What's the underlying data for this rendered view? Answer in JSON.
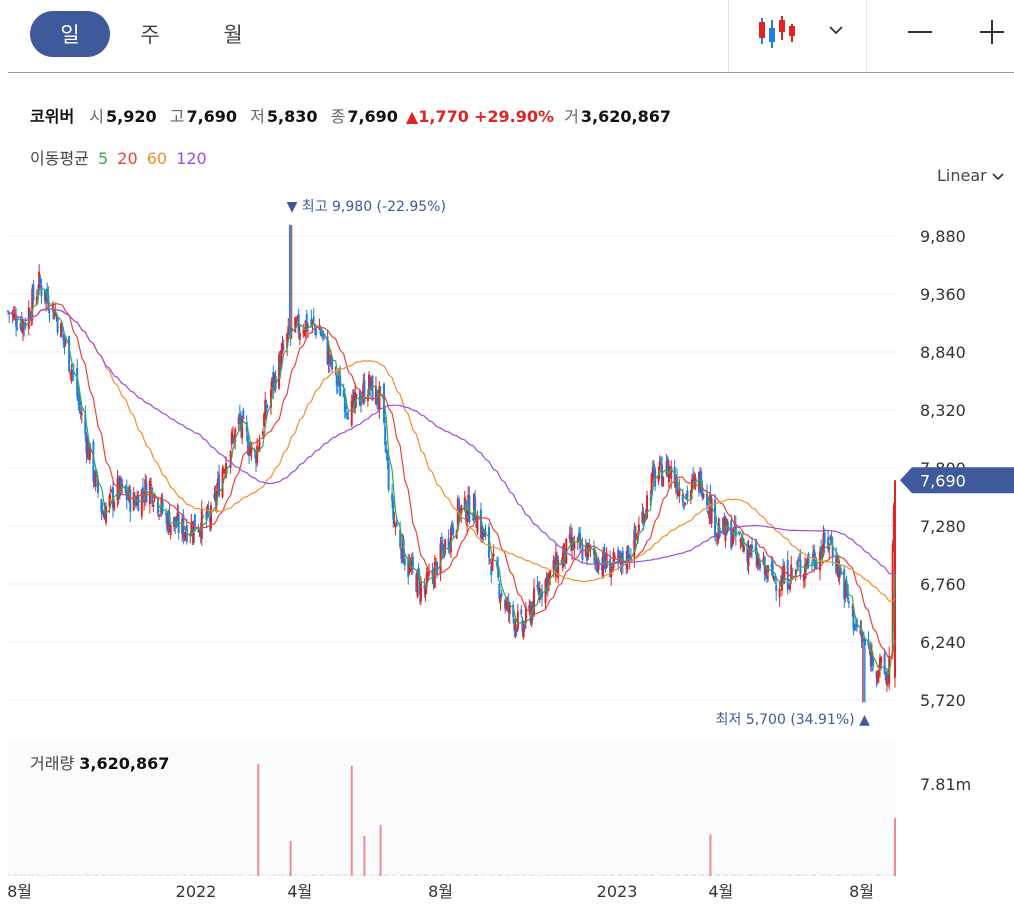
{
  "toolbar": {
    "periods": [
      "일",
      "주",
      "월"
    ],
    "active_period": "일",
    "chart_type_icon": "candlestick-icon",
    "dropdown_icon": "chevron-down-icon",
    "zoom_out_icon": "minus-icon",
    "zoom_in_icon": "plus-icon"
  },
  "quote": {
    "name": "코위버",
    "open_label": "시",
    "open": "5,920",
    "high_label": "고",
    "high": "7,690",
    "low_label": "저",
    "low": "5,830",
    "close_label": "종",
    "close": "7,690",
    "change": "1,770",
    "change_pct": "+29.90%",
    "volume_label": "거",
    "volume": "3,620,867"
  },
  "moving_average": {
    "label": "이동평균",
    "periods": [
      {
        "value": "5",
        "color": "#3aa655"
      },
      {
        "value": "20",
        "color": "#e8423f"
      },
      {
        "value": "60",
        "color": "#f0902a"
      },
      {
        "value": "120",
        "color": "#9a4de0"
      }
    ]
  },
  "scale_mode": "Linear",
  "colors": {
    "up": "#e02424",
    "down": "#1f7fe0",
    "accent": "#3f5a9a"
  },
  "chart_data": {
    "type": "candlestick",
    "y_ticks": [
      "9,880",
      "9,360",
      "8,840",
      "8,320",
      "7,800",
      "7,280",
      "6,760",
      "6,240",
      "5,720"
    ],
    "y_tick_values": [
      9880,
      9360,
      8840,
      8320,
      7800,
      7280,
      6760,
      6240,
      5720
    ],
    "ylim": [
      5630,
      10080
    ],
    "x_ticks": [
      "8월",
      "2022",
      "4월",
      "8월",
      "2023",
      "4월",
      "8월"
    ],
    "x_tick_dates": [
      "2021-08-01",
      "2022-01-01",
      "2022-04-01",
      "2022-08-01",
      "2023-01-01",
      "2023-04-01",
      "2023-08-01"
    ],
    "x_range": [
      "2021-07-22",
      "2023-08-30"
    ],
    "high_marker": {
      "label": "최고",
      "value": "9,980",
      "pct": "(-22.95%)",
      "date": "2022-03-24",
      "price": 9980
    },
    "low_marker": {
      "label": "최저",
      "value": "5,700",
      "pct": "(34.91%)",
      "date": "2023-08-03",
      "price": 5700
    },
    "current_price": {
      "label": "7,690",
      "value": 7690
    },
    "price_path": [
      [
        "2021-07-22",
        9200
      ],
      [
        "2021-08-05",
        9100
      ],
      [
        "2021-08-18",
        9450
      ],
      [
        "2021-09-01",
        9200
      ],
      [
        "2021-09-15",
        8700
      ],
      [
        "2021-10-01",
        7900
      ],
      [
        "2021-10-12",
        7400
      ],
      [
        "2021-10-25",
        7600
      ],
      [
        "2021-11-08",
        7500
      ],
      [
        "2021-11-22",
        7650
      ],
      [
        "2021-12-06",
        7350
      ],
      [
        "2021-12-20",
        7250
      ],
      [
        "2022-01-03",
        7300
      ],
      [
        "2022-01-14",
        7350
      ],
      [
        "2022-01-24",
        7800
      ],
      [
        "2022-02-07",
        8200
      ],
      [
        "2022-02-21",
        7900
      ],
      [
        "2022-03-07",
        8500
      ],
      [
        "2022-03-21",
        8950
      ],
      [
        "2022-04-04",
        9100
      ],
      [
        "2022-04-18",
        9050
      ],
      [
        "2022-05-02",
        8600
      ],
      [
        "2022-05-16",
        8300
      ],
      [
        "2022-05-30",
        8550
      ],
      [
        "2022-06-10",
        8400
      ],
      [
        "2022-06-20",
        7400
      ],
      [
        "2022-07-04",
        6900
      ],
      [
        "2022-07-18",
        6700
      ],
      [
        "2022-08-01",
        7000
      ],
      [
        "2022-08-16",
        7400
      ],
      [
        "2022-08-30",
        7450
      ],
      [
        "2022-09-13",
        7000
      ],
      [
        "2022-09-27",
        6550
      ],
      [
        "2022-10-11",
        6350
      ],
      [
        "2022-10-25",
        6700
      ],
      [
        "2022-11-08",
        6900
      ],
      [
        "2022-11-22",
        7100
      ],
      [
        "2022-12-06",
        7050
      ],
      [
        "2022-12-20",
        6950
      ],
      [
        "2023-01-03",
        6900
      ],
      [
        "2023-01-17",
        7150
      ],
      [
        "2023-02-01",
        7700
      ],
      [
        "2023-02-15",
        7800
      ],
      [
        "2023-03-01",
        7550
      ],
      [
        "2023-03-15",
        7700
      ],
      [
        "2023-03-29",
        7250
      ],
      [
        "2023-04-12",
        7200
      ],
      [
        "2023-04-26",
        7050
      ],
      [
        "2023-05-10",
        6850
      ],
      [
        "2023-05-24",
        6800
      ],
      [
        "2023-06-07",
        6900
      ],
      [
        "2023-06-21",
        7000
      ],
      [
        "2023-07-05",
        7150
      ],
      [
        "2023-07-19",
        6650
      ],
      [
        "2023-07-28",
        6350
      ],
      [
        "2023-08-07",
        6150
      ],
      [
        "2023-08-17",
        6000
      ],
      [
        "2023-08-24",
        5900
      ],
      [
        "2023-08-30",
        7690
      ]
    ],
    "moving_averages": [
      {
        "period": "5",
        "color": "#3aa655"
      },
      {
        "period": "20",
        "color": "#e8423f"
      },
      {
        "period": "60",
        "color": "#f0902a"
      },
      {
        "period": "120",
        "color": "#9a4de0"
      }
    ],
    "volume": {
      "label": "거래량",
      "value": "3,620,867",
      "tick": "7.81m",
      "tick_value": 7810000,
      "spikes": [
        [
          "2022-02-24",
          7000000
        ],
        [
          "2022-03-24",
          2200000
        ],
        [
          "2022-05-16",
          6900000
        ],
        [
          "2022-05-27",
          2500000
        ],
        [
          "2022-06-10",
          3200000
        ],
        [
          "2023-03-23",
          2600000
        ],
        [
          "2023-08-30",
          3620867
        ]
      ]
    }
  }
}
